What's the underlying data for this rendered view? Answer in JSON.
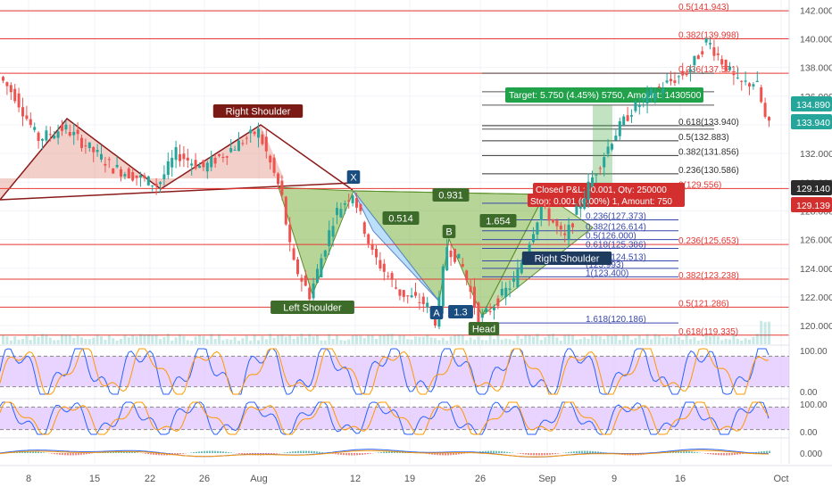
{
  "colors": {
    "up": "#26a69a",
    "down": "#ef5350",
    "fib_red": "#e53935",
    "fib_blue": "#3949ab",
    "hs_fill": "#e8a89c",
    "hs_line": "#8b1a1a",
    "harmonic_green": "#7cb342",
    "harmonic_blue": "#90caf9",
    "osc_band": "#d9b8ff",
    "target_bg": "#22a14b",
    "stop_bg": "#d32f2f",
    "label_dark": "#1a4d80",
    "price_dark": "#2c2c2c"
  },
  "chart_data": {
    "type": "candlestick",
    "y_axis": {
      "ticks": [
        "142.000",
        "140.000",
        "138.000",
        "136.000",
        "134.000",
        "132.000",
        "130.000",
        "128.000",
        "126.000",
        "124.000",
        "122.000",
        "120.000"
      ],
      "ylim": [
        118.7,
        142.7
      ]
    },
    "x_axis": {
      "ticks": [
        "8",
        "15",
        "22",
        "26",
        "Aug",
        "12",
        "19",
        "26",
        "Sep",
        "9",
        "16",
        "Oct"
      ]
    },
    "price_badges": [
      {
        "value": "134.890",
        "color": "#26a69a"
      },
      {
        "value": "133.940",
        "color": "#26a69a"
      },
      {
        "value": "129.140",
        "color": "#2c2c2c"
      },
      {
        "value": "129.139",
        "color": "#d32f2f"
      }
    ],
    "fib_retracement_left": [
      {
        "ratio": "0.5",
        "price": "141.943",
        "value": 141.943
      },
      {
        "ratio": "0.382",
        "price": "139.998",
        "value": 139.998
      },
      {
        "ratio": "0.236",
        "price": "137.591",
        "value": 137.591
      },
      {
        "ratio": "0",
        "price": "129.556",
        "value": 129.556
      },
      {
        "ratio": "0.236",
        "price": "125.653",
        "value": 125.653
      },
      {
        "ratio": "0.382",
        "price": "123.238",
        "value": 123.238
      },
      {
        "ratio": "0.5",
        "price": "121.286",
        "value": 121.286
      },
      {
        "ratio": "0.618",
        "price": "119.335",
        "value": 119.335
      }
    ],
    "fib_retracement_right": [
      {
        "ratio": "0.618",
        "price": "133.940",
        "value": 133.94
      },
      {
        "ratio": "0.5",
        "price": "132.883",
        "value": 132.883
      },
      {
        "ratio": "0.382",
        "price": "131.856",
        "value": 131.856
      },
      {
        "ratio": "0.236",
        "price": "130.586",
        "value": 130.586
      },
      {
        "ratio": "",
        "price": "128.532",
        "value": 128.532
      },
      {
        "ratio": "0.236",
        "price": "127.373",
        "value": 127.373
      },
      {
        "ratio": "0.382",
        "price": "126.614",
        "value": 126.614
      },
      {
        "ratio": "0.5",
        "price": "126.000",
        "value": 126.0
      },
      {
        "ratio": "0.618",
        "price": "125.386",
        "value": 125.386
      },
      {
        "ratio": "0.786",
        "price": "124.513",
        "value": 124.513
      },
      {
        "ratio": "",
        "price": "123.993",
        "value": 123.993
      },
      {
        "ratio": "1",
        "price": "123.400",
        "value": 123.4
      },
      {
        "ratio": "1.618",
        "price": "120.186",
        "value": 120.186
      }
    ],
    "fib_upper_right": [
      {
        "ratio": "",
        "price": "137.591",
        "value": 137.591
      },
      {
        "ratio": "",
        "price": "136.3",
        "value": 136.3
      },
      {
        "ratio": "",
        "price": "135.37",
        "value": 135.37
      },
      {
        "ratio": "0.618",
        "price": "133.940",
        "value": 133.94
      },
      {
        "ratio": "",
        "price": "133.700",
        "value": 133.7
      }
    ],
    "pattern_labels": [
      {
        "text": "Right Shoulder",
        "style": "red",
        "price": 134.3
      },
      {
        "text": "Left Shoulder",
        "style": "green",
        "price": 119.6
      },
      {
        "text": "Head",
        "style": "green",
        "price": 118.4
      },
      {
        "text": "Right Shoulder",
        "style": "dark",
        "price": 124.1
      },
      {
        "text": "X",
        "style": "blue",
        "price": 130.3
      },
      {
        "text": "A",
        "style": "blue",
        "price": 119.8
      },
      {
        "text": "B",
        "style": "green",
        "price": 126.2
      },
      {
        "text": "0.931",
        "style": "green",
        "price": 128.5
      },
      {
        "text": "0.514",
        "style": "green",
        "price": 126.8
      },
      {
        "text": "1.654",
        "style": "green",
        "price": 126.6
      },
      {
        "text": "1.3",
        "style": "blue",
        "price": 119.9
      }
    ],
    "trade_boxes": {
      "target": "Target: 5.750 (4.45%) 5750, Amount: 1430500",
      "closed": "Closed P&L: -0.001, Qty: 250000",
      "stop": "Stop: 0.001 (0.00%) 1, Amount: 750"
    },
    "oscillators": [
      {
        "name": "stoch-rsi-1",
        "ticks": [
          "100.00",
          "0.00"
        ]
      },
      {
        "name": "stoch-rsi-2",
        "ticks": [
          "100.00",
          "0.00"
        ]
      },
      {
        "name": "macd",
        "ticks": [
          "0.000"
        ]
      }
    ]
  }
}
